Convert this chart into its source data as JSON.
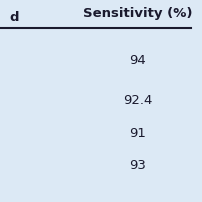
{
  "title": "Sensitivity (%)",
  "left_header": "d",
  "values": [
    "94",
    "92.4",
    "91",
    "93"
  ],
  "bg_color": "#dce9f5",
  "text_color": "#1a1a2e",
  "title_fontsize": 9.5,
  "value_fontsize": 9.5,
  "header_line_color": "#1a1a2e",
  "figsize": [
    2.02,
    2.02
  ],
  "dpi": 100
}
